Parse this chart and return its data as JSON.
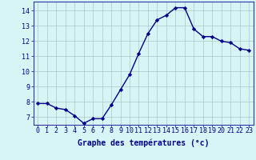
{
  "x": [
    0,
    1,
    2,
    3,
    4,
    5,
    6,
    7,
    8,
    9,
    10,
    11,
    12,
    13,
    14,
    15,
    16,
    17,
    18,
    19,
    20,
    21,
    22,
    23
  ],
  "y": [
    7.9,
    7.9,
    7.6,
    7.5,
    7.1,
    6.6,
    6.9,
    6.9,
    7.8,
    8.8,
    9.8,
    11.2,
    12.5,
    13.4,
    13.7,
    14.2,
    14.2,
    12.8,
    12.3,
    12.3,
    12.0,
    11.9,
    11.5,
    11.4
  ],
  "line_color": "#00008B",
  "marker": "D",
  "marker_size": 2.2,
  "bg_color": "#d8f5f5",
  "grid_color": "#aac8c8",
  "xlabel": "Graphe des températures (°c)",
  "ylim": [
    6.5,
    14.6
  ],
  "yticks": [
    7,
    8,
    9,
    10,
    11,
    12,
    13,
    14
  ],
  "xticks": [
    0,
    1,
    2,
    3,
    4,
    5,
    6,
    7,
    8,
    9,
    10,
    11,
    12,
    13,
    14,
    15,
    16,
    17,
    18,
    19,
    20,
    21,
    22,
    23
  ],
  "spine_color": "#3333aa",
  "tick_color": "#00008B",
  "label_color": "#00008B",
  "label_fontsize": 7.0,
  "tick_fontsize": 6.0,
  "linewidth": 1.0
}
